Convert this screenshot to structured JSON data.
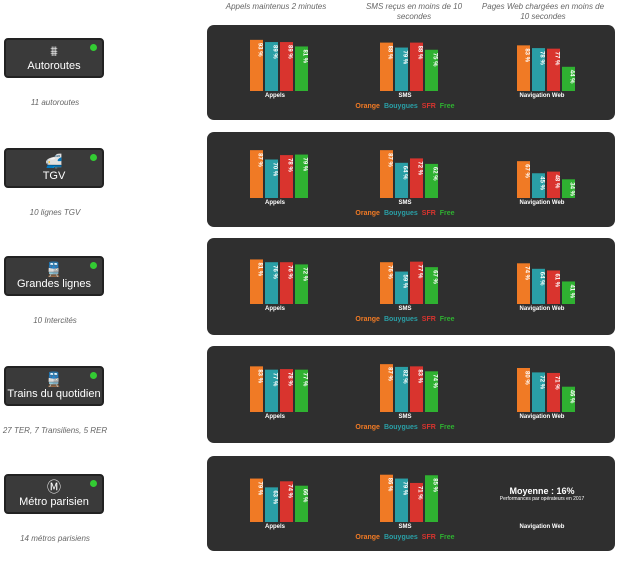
{
  "headers": {
    "calls": "Appels maintenus 2 minutes",
    "sms": "SMS reçus en moins de 10 secondes",
    "web": "Pages Web chargées en moins de 10 secondes"
  },
  "colors": {
    "orange": "#f07a25",
    "bouygues": "#2a9fa6",
    "sfr": "#d9342e",
    "free": "#2fb131"
  },
  "legend": {
    "orange": "Orange",
    "bouygues": "Bouygues",
    "sfr": "SFR",
    "free": "Free"
  },
  "chart_data": [
    {
      "type": "bar",
      "category": "Autoroutes",
      "subtitle": "11 autoroutes",
      "icon": "highway-icon",
      "groups": [
        {
          "label": "Appels",
          "values": [
            93,
            89,
            89,
            81
          ],
          "labels": [
            "93 %",
            "89 %",
            "89 %",
            "81 %"
          ]
        },
        {
          "label": "SMS",
          "values": [
            88,
            79,
            88,
            75
          ],
          "labels": [
            "88 %",
            "79 %",
            "88 %",
            "75 %"
          ]
        },
        {
          "label": "Navigation Web",
          "values": [
            83,
            78,
            77,
            44
          ],
          "labels": [
            "83 %",
            "78 %",
            "77 %",
            "44 %"
          ]
        }
      ],
      "ylim": [
        0,
        100
      ]
    },
    {
      "type": "bar",
      "category": "TGV",
      "subtitle": "10 lignes TGV",
      "icon": "train-icon",
      "groups": [
        {
          "label": "Appels",
          "values": [
            87,
            70,
            78,
            79
          ],
          "labels": [
            "87 %",
            "70 %",
            "78 %",
            "79 %"
          ]
        },
        {
          "label": "SMS",
          "values": [
            87,
            64,
            72,
            62
          ],
          "labels": [
            "87 %",
            "64 %",
            "72 %",
            "62 %"
          ]
        },
        {
          "label": "Navigation Web",
          "values": [
            67,
            45,
            48,
            34
          ],
          "labels": [
            "67 %",
            "45 %",
            "48 %",
            "34 %"
          ]
        }
      ],
      "ylim": [
        0,
        100
      ]
    },
    {
      "type": "bar",
      "category": "Grandes lignes",
      "subtitle": "10 Intercités",
      "icon": "intercity-train-icon",
      "groups": [
        {
          "label": "Appels",
          "values": [
            81,
            76,
            76,
            72
          ],
          "labels": [
            "81 %",
            "76 %",
            "76 %",
            "72 %"
          ]
        },
        {
          "label": "SMS",
          "values": [
            76,
            59,
            77,
            67
          ],
          "labels": [
            "76 %",
            "59 %",
            "77 %",
            "67 %"
          ]
        },
        {
          "label": "Navigation Web",
          "values": [
            74,
            64,
            61,
            41
          ],
          "labels": [
            "74 %",
            "64 %",
            "61 %",
            "41 %"
          ]
        }
      ],
      "ylim": [
        0,
        100
      ]
    },
    {
      "type": "bar",
      "category": "Trains du quotidien",
      "subtitle": "27 TER, 7 Transiliens, 5 RER",
      "icon": "regional-train-icon",
      "groups": [
        {
          "label": "Appels",
          "values": [
            83,
            77,
            78,
            77
          ],
          "labels": [
            "83 %",
            "77 %",
            "78 %",
            "77 %"
          ]
        },
        {
          "label": "SMS",
          "values": [
            87,
            82,
            83,
            74
          ],
          "labels": [
            "87 %",
            "82 %",
            "83 %",
            "74 %"
          ]
        },
        {
          "label": "Navigation Web",
          "values": [
            80,
            72,
            71,
            46
          ],
          "labels": [
            "80 %",
            "72 %",
            "71 %",
            "46 %"
          ]
        }
      ],
      "ylim": [
        0,
        100
      ]
    },
    {
      "type": "bar",
      "category": "Métro parisien",
      "subtitle": "14 métros parisiens",
      "icon": "metro-icon",
      "groups": [
        {
          "label": "Appels",
          "values": [
            79,
            63,
            74,
            66
          ],
          "labels": [
            "79 %",
            "63 %",
            "74 %",
            "66 %"
          ]
        },
        {
          "label": "SMS",
          "values": [
            86,
            79,
            71,
            85
          ],
          "labels": [
            "86 %",
            "79 %",
            "71 %",
            "85 %"
          ]
        },
        {
          "label": "Navigation Web",
          "values": null,
          "labels": null,
          "note_title": "Moyenne : 16%",
          "note_text": "Performances par opérateurs en 2017"
        }
      ],
      "ylim": [
        0,
        100
      ]
    }
  ]
}
